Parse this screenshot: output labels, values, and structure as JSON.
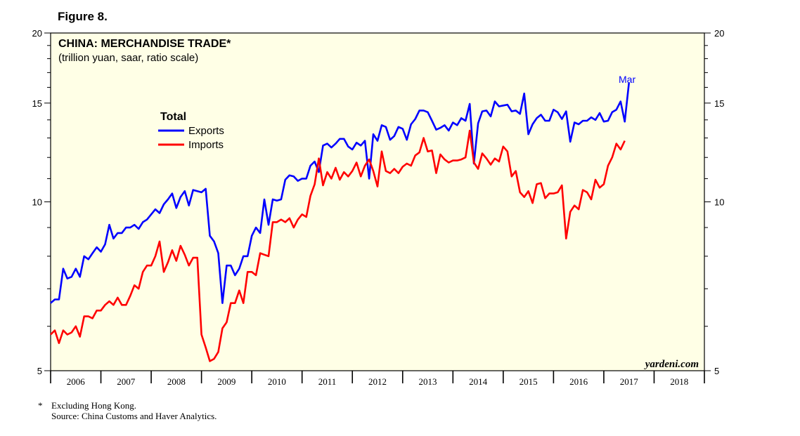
{
  "figure_label": "Figure 8.",
  "footnote": {
    "marker": "*",
    "text": "Excluding Hong Kong.",
    "source": "Source: China Customs and Haver Analytics."
  },
  "colors": {
    "plot_background": "#ffffe6",
    "exports": "#0000ff",
    "imports": "#ff0000"
  },
  "chart_data": {
    "type": "line",
    "title": "CHINA: MERCHANDISE TRADE*",
    "subtitle": "(trillion yuan, saar, ratio scale)",
    "scale": "log",
    "ylim": [
      5,
      20
    ],
    "xlim": [
      2006.0,
      2019.0
    ],
    "ytick_values": [
      5,
      10,
      15,
      20
    ],
    "ytick_labels": [
      "5",
      "10",
      "15",
      "20"
    ],
    "xtick_labels": [
      "2006",
      "2007",
      "2008",
      "2009",
      "2010",
      "2011",
      "2012",
      "2013",
      "2014",
      "2015",
      "2016",
      "2017",
      "2018"
    ],
    "legend_title": "Total",
    "legend_position": "upper-left",
    "annotation": "Mar",
    "watermark": "yardeni.com",
    "series": [
      {
        "name": "Exports",
        "color": "#0000ff",
        "start": 2006.0,
        "step": 0.0833333,
        "values": [
          6.6,
          6.7,
          6.7,
          7.6,
          7.3,
          7.35,
          7.6,
          7.35,
          8.0,
          7.9,
          8.1,
          8.3,
          8.15,
          8.4,
          9.1,
          8.6,
          8.8,
          8.8,
          9.0,
          9.0,
          9.1,
          8.95,
          9.2,
          9.3,
          9.5,
          9.7,
          9.55,
          9.9,
          10.1,
          10.35,
          9.75,
          10.2,
          10.45,
          9.85,
          10.5,
          10.45,
          10.4,
          10.55,
          8.7,
          8.5,
          8.1,
          6.6,
          7.7,
          7.7,
          7.4,
          7.6,
          8.0,
          8.0,
          8.7,
          9.0,
          8.8,
          10.1,
          9.1,
          10.1,
          10.05,
          10.1,
          10.95,
          11.15,
          11.1,
          10.9,
          11.0,
          11.0,
          11.6,
          11.8,
          11.3,
          12.6,
          12.7,
          12.5,
          12.7,
          12.95,
          12.95,
          12.55,
          12.4,
          12.75,
          12.6,
          12.85,
          11.0,
          13.2,
          12.85,
          13.7,
          13.6,
          12.9,
          13.1,
          13.6,
          13.5,
          12.9,
          13.75,
          14.05,
          14.55,
          14.55,
          14.45,
          13.95,
          13.45,
          13.55,
          13.7,
          13.4,
          13.85,
          13.7,
          14.1,
          13.95,
          14.95,
          11.7,
          13.8,
          14.5,
          14.55,
          14.2,
          15.1,
          14.8,
          14.85,
          14.9,
          14.5,
          14.55,
          14.35,
          15.6,
          13.2,
          13.75,
          14.1,
          14.3,
          13.95,
          13.95,
          14.6,
          14.45,
          14.05,
          14.5,
          12.8,
          13.85,
          13.75,
          13.95,
          13.95,
          14.15,
          14.0,
          14.4,
          13.9,
          13.95,
          14.45,
          14.6,
          15.1,
          13.9,
          16.3
        ]
      },
      {
        "name": "Imports",
        "color": "#ff0000",
        "start": 2006.0,
        "step": 0.0833333,
        "values": [
          5.8,
          5.9,
          5.6,
          5.9,
          5.8,
          5.85,
          6.0,
          5.75,
          6.25,
          6.25,
          6.2,
          6.4,
          6.4,
          6.55,
          6.65,
          6.55,
          6.75,
          6.55,
          6.55,
          6.8,
          7.1,
          7.0,
          7.5,
          7.7,
          7.7,
          8.0,
          8.5,
          7.5,
          7.8,
          8.2,
          7.85,
          8.35,
          8.05,
          7.7,
          7.95,
          7.95,
          5.8,
          5.5,
          5.2,
          5.25,
          5.4,
          5.95,
          6.1,
          6.6,
          6.6,
          6.95,
          6.6,
          7.5,
          7.5,
          7.4,
          8.1,
          8.05,
          8.0,
          9.2,
          9.2,
          9.3,
          9.2,
          9.35,
          9.0,
          9.3,
          9.5,
          9.4,
          10.25,
          10.75,
          11.95,
          10.7,
          11.3,
          11.0,
          11.5,
          10.95,
          11.3,
          11.1,
          11.35,
          11.75,
          11.1,
          11.6,
          11.9,
          11.35,
          10.65,
          12.3,
          11.35,
          11.25,
          11.45,
          11.25,
          11.55,
          11.7,
          11.6,
          12.1,
          12.25,
          13.0,
          12.3,
          12.35,
          11.25,
          12.15,
          11.9,
          11.75,
          11.85,
          11.85,
          11.9,
          12.0,
          13.4,
          11.75,
          11.45,
          12.2,
          11.95,
          11.65,
          11.95,
          11.8,
          12.55,
          12.3,
          11.1,
          11.35,
          10.4,
          10.2,
          10.45,
          9.95,
          10.75,
          10.8,
          10.15,
          10.35,
          10.35,
          10.4,
          10.7,
          8.6,
          9.6,
          9.85,
          9.7,
          10.5,
          10.4,
          10.1,
          10.95,
          10.6,
          10.75,
          11.6,
          12.0,
          12.7,
          12.4,
          12.85
        ]
      }
    ]
  }
}
